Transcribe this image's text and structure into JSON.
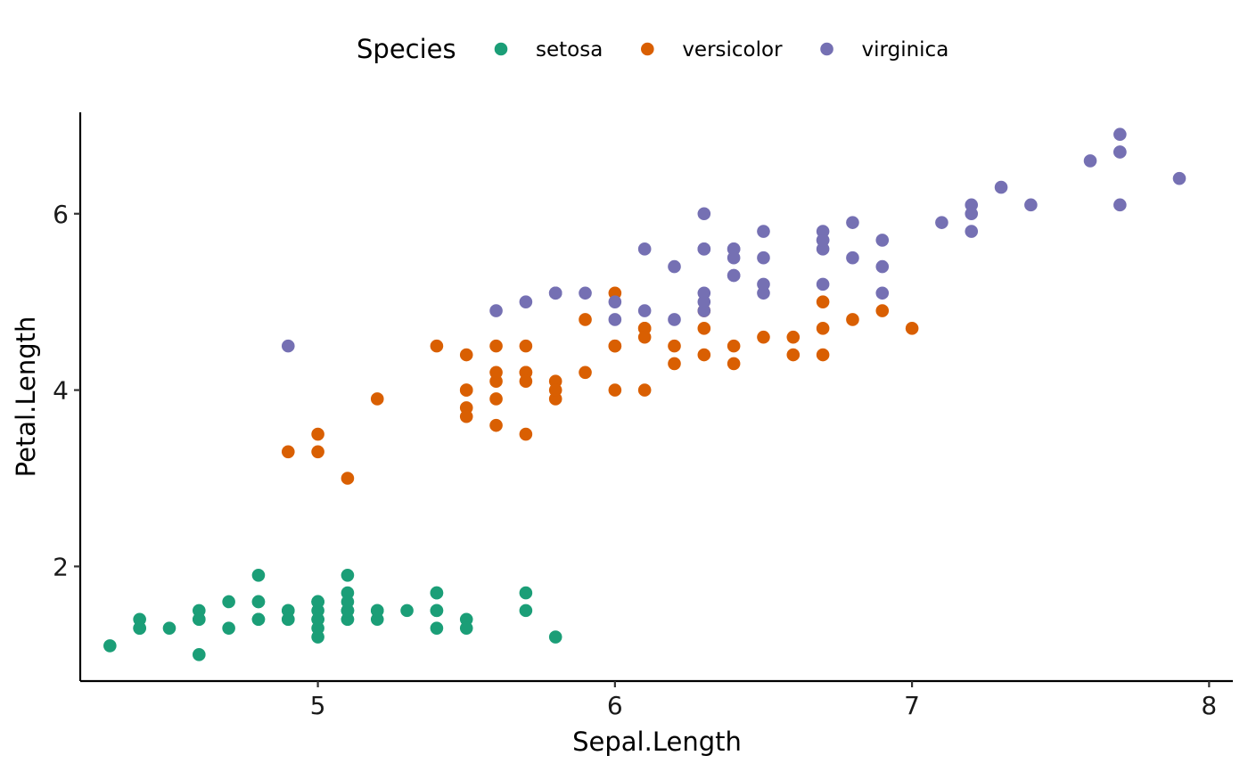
{
  "chart_data": {
    "type": "scatter",
    "title": "",
    "xlabel": "Sepal.Length",
    "ylabel": "Petal.Length",
    "xlim": [
      4.2,
      8.08
    ],
    "ylim": [
      0.7,
      7.15
    ],
    "xticks": [
      5,
      6,
      7,
      8
    ],
    "yticks": [
      2,
      4,
      6
    ],
    "grid": false,
    "legend": {
      "title": "Species",
      "position": "top"
    },
    "series": [
      {
        "name": "setosa",
        "color": "#1B9E77",
        "points": [
          [
            5.1,
            1.4
          ],
          [
            4.9,
            1.4
          ],
          [
            4.7,
            1.3
          ],
          [
            4.6,
            1.5
          ],
          [
            5.0,
            1.4
          ],
          [
            5.4,
            1.7
          ],
          [
            4.6,
            1.4
          ],
          [
            5.0,
            1.5
          ],
          [
            4.4,
            1.4
          ],
          [
            4.9,
            1.5
          ],
          [
            5.4,
            1.5
          ],
          [
            4.8,
            1.6
          ],
          [
            4.8,
            1.4
          ],
          [
            4.3,
            1.1
          ],
          [
            5.8,
            1.2
          ],
          [
            5.7,
            1.5
          ],
          [
            5.4,
            1.3
          ],
          [
            5.1,
            1.4
          ],
          [
            5.7,
            1.7
          ],
          [
            5.1,
            1.5
          ],
          [
            5.4,
            1.7
          ],
          [
            5.1,
            1.5
          ],
          [
            4.6,
            1.0
          ],
          [
            5.1,
            1.7
          ],
          [
            4.8,
            1.9
          ],
          [
            5.0,
            1.6
          ],
          [
            5.0,
            1.6
          ],
          [
            5.2,
            1.5
          ],
          [
            5.2,
            1.4
          ],
          [
            4.7,
            1.6
          ],
          [
            4.8,
            1.6
          ],
          [
            5.4,
            1.5
          ],
          [
            5.2,
            1.5
          ],
          [
            5.5,
            1.4
          ],
          [
            4.9,
            1.5
          ],
          [
            5.0,
            1.2
          ],
          [
            5.5,
            1.3
          ],
          [
            4.9,
            1.4
          ],
          [
            4.4,
            1.3
          ],
          [
            5.1,
            1.5
          ],
          [
            5.0,
            1.3
          ],
          [
            4.5,
            1.3
          ],
          [
            4.4,
            1.3
          ],
          [
            5.0,
            1.6
          ],
          [
            5.1,
            1.9
          ],
          [
            4.8,
            1.4
          ],
          [
            5.1,
            1.6
          ],
          [
            4.6,
            1.4
          ],
          [
            5.3,
            1.5
          ],
          [
            5.0,
            1.4
          ]
        ]
      },
      {
        "name": "versicolor",
        "color": "#D95F02",
        "points": [
          [
            7.0,
            4.7
          ],
          [
            6.4,
            4.5
          ],
          [
            6.9,
            4.9
          ],
          [
            5.5,
            4.0
          ],
          [
            6.5,
            4.6
          ],
          [
            5.7,
            4.5
          ],
          [
            6.3,
            4.7
          ],
          [
            4.9,
            3.3
          ],
          [
            6.6,
            4.6
          ],
          [
            5.2,
            3.9
          ],
          [
            5.0,
            3.5
          ],
          [
            5.9,
            4.2
          ],
          [
            6.0,
            4.0
          ],
          [
            6.1,
            4.7
          ],
          [
            5.6,
            3.6
          ],
          [
            6.7,
            4.4
          ],
          [
            5.6,
            4.5
          ],
          [
            5.8,
            4.1
          ],
          [
            6.2,
            4.5
          ],
          [
            5.6,
            3.9
          ],
          [
            5.9,
            4.8
          ],
          [
            6.1,
            4.0
          ],
          [
            6.3,
            4.9
          ],
          [
            6.1,
            4.7
          ],
          [
            6.4,
            4.3
          ],
          [
            6.6,
            4.4
          ],
          [
            6.8,
            4.8
          ],
          [
            6.7,
            5.0
          ],
          [
            6.0,
            4.5
          ],
          [
            5.7,
            3.5
          ],
          [
            5.5,
            3.8
          ],
          [
            5.5,
            3.7
          ],
          [
            5.8,
            3.9
          ],
          [
            6.0,
            5.1
          ],
          [
            5.4,
            4.5
          ],
          [
            6.0,
            4.5
          ],
          [
            6.7,
            4.7
          ],
          [
            6.3,
            4.4
          ],
          [
            5.6,
            4.1
          ],
          [
            5.5,
            4.0
          ],
          [
            5.5,
            4.4
          ],
          [
            6.1,
            4.6
          ],
          [
            5.8,
            4.0
          ],
          [
            5.0,
            3.3
          ],
          [
            5.6,
            4.2
          ],
          [
            5.7,
            4.2
          ],
          [
            5.7,
            4.2
          ],
          [
            6.2,
            4.3
          ],
          [
            5.1,
            3.0
          ],
          [
            5.7,
            4.1
          ]
        ]
      },
      {
        "name": "virginica",
        "color": "#7570B3",
        "points": [
          [
            6.3,
            6.0
          ],
          [
            5.8,
            5.1
          ],
          [
            7.1,
            5.9
          ],
          [
            6.3,
            5.6
          ],
          [
            6.5,
            5.8
          ],
          [
            7.6,
            6.6
          ],
          [
            4.9,
            4.5
          ],
          [
            7.3,
            6.3
          ],
          [
            6.7,
            5.8
          ],
          [
            7.2,
            6.1
          ],
          [
            6.5,
            5.1
          ],
          [
            6.4,
            5.3
          ],
          [
            6.8,
            5.5
          ],
          [
            5.7,
            5.0
          ],
          [
            5.8,
            5.1
          ],
          [
            6.4,
            5.3
          ],
          [
            6.5,
            5.5
          ],
          [
            7.7,
            6.7
          ],
          [
            7.7,
            6.9
          ],
          [
            6.0,
            5.0
          ],
          [
            6.9,
            5.7
          ],
          [
            5.6,
            4.9
          ],
          [
            7.7,
            6.7
          ],
          [
            6.3,
            4.9
          ],
          [
            6.7,
            5.7
          ],
          [
            7.2,
            6.0
          ],
          [
            6.2,
            4.8
          ],
          [
            6.1,
            4.9
          ],
          [
            6.4,
            5.6
          ],
          [
            7.2,
            5.8
          ],
          [
            7.4,
            6.1
          ],
          [
            7.9,
            6.4
          ],
          [
            6.4,
            5.6
          ],
          [
            6.3,
            5.1
          ],
          [
            6.1,
            5.6
          ],
          [
            7.7,
            6.1
          ],
          [
            6.3,
            5.6
          ],
          [
            6.4,
            5.5
          ],
          [
            6.0,
            4.8
          ],
          [
            6.9,
            5.4
          ],
          [
            6.7,
            5.6
          ],
          [
            6.9,
            5.1
          ],
          [
            5.8,
            5.1
          ],
          [
            6.8,
            5.9
          ],
          [
            6.7,
            5.7
          ],
          [
            6.7,
            5.2
          ],
          [
            6.3,
            5.0
          ],
          [
            6.5,
            5.2
          ],
          [
            6.2,
            5.4
          ],
          [
            5.9,
            5.1
          ]
        ]
      }
    ]
  }
}
